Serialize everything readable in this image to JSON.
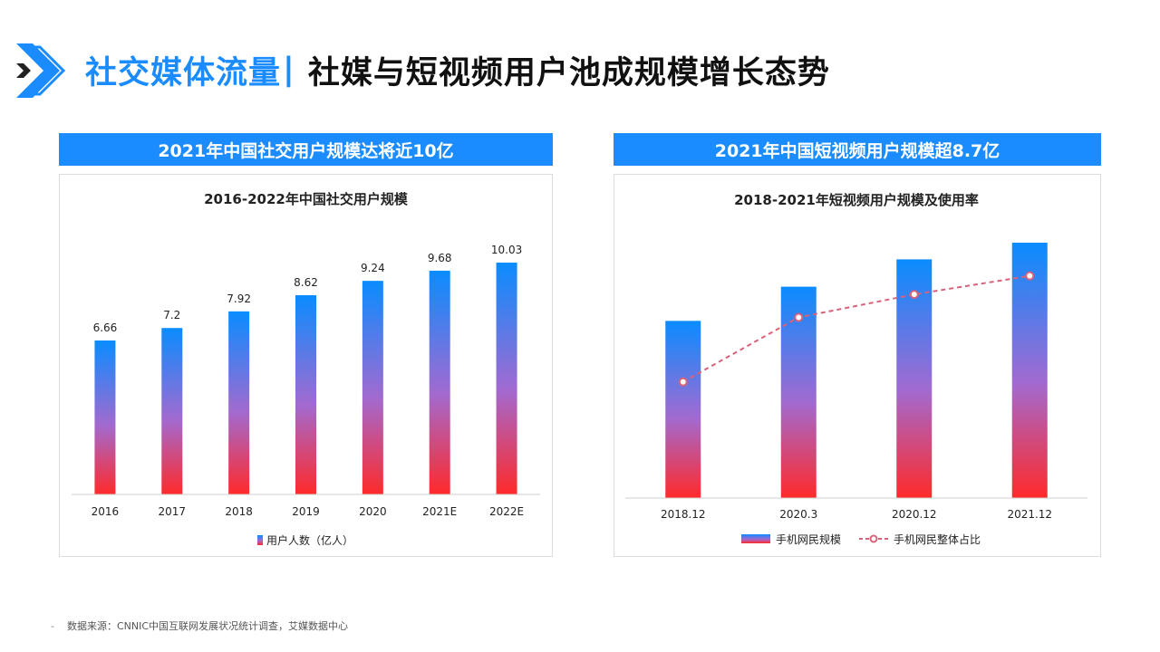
{
  "page": {
    "title_part1": "社交媒体流量",
    "title_separator": "|",
    "title_part2": "社媒与短视频用户池成规模增长态势",
    "footnote": "数据来源：CNNIC中国互联网发展状况统计调查，艾媒数据中心",
    "accent_color": "#1a8cff",
    "icon": "double-chevron-right-icon"
  },
  "left_panel": {
    "header": "2021年中国社交用户规模达将近10亿"
  },
  "right_panel": {
    "header": "2021年中国短视频用户规模超8.7亿"
  },
  "chart_data": [
    {
      "type": "bar",
      "title": "2016-2022年中国社交用户规模",
      "categories": [
        "2016",
        "2017",
        "2018",
        "2019",
        "2020",
        "2021E",
        "2022E"
      ],
      "series": [
        {
          "name": "用户人数（亿人）",
          "values": [
            6.66,
            7.2,
            7.92,
            8.62,
            9.24,
            9.68,
            10.03
          ]
        }
      ],
      "data_labels": [
        "6.66",
        "7.2",
        "7.92",
        "8.62",
        "9.24",
        "9.68",
        "10.03"
      ],
      "ylim": [
        0,
        10.5
      ],
      "grid": false,
      "legend": "bottom",
      "bar_gradient": [
        "#0a8cff",
        "#ff2a2a"
      ]
    },
    {
      "type": "bar",
      "title": "2018-2021年短视频用户规模及使用率",
      "categories": [
        "2018.12",
        "2020.3",
        "2020.12",
        "2021.12"
      ],
      "series": [
        {
          "name": "手机网民规模",
          "type": "bar",
          "values": [
            6.48,
            7.73,
            8.73,
            9.34
          ]
        },
        {
          "name": "手机网民整体占比",
          "type": "line",
          "values": [
            78.2,
            88.3,
            91.9,
            94.8
          ]
        }
      ],
      "ylim": [
        0,
        9.34
      ],
      "y2lim": [
        60,
        100
      ],
      "grid": false,
      "legend": "bottom",
      "bar_gradient": [
        "#0a8cff",
        "#ff2a2a"
      ],
      "line_color": "#d8627a"
    }
  ]
}
